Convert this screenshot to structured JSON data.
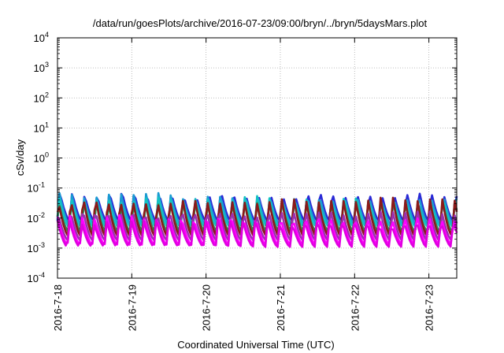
{
  "chart_data": {
    "type": "line",
    "title": "/data/run/goesPlots/archive/2016-07-23/09:00/bryn/../bryn/5daysMars.plot",
    "xlabel": "Coordinated Universal Time (UTC)",
    "ylabel": "cSv/day",
    "yscale": "log",
    "ylim": [
      0.0001,
      10000
    ],
    "xlim": [
      "2016-07-18",
      "2016-07-23 09:00"
    ],
    "y_ticks": [
      {
        "value": 0.0001,
        "base": "10",
        "exp": "-4"
      },
      {
        "value": 0.001,
        "base": "10",
        "exp": "-3"
      },
      {
        "value": 0.01,
        "base": "10",
        "exp": "-2"
      },
      {
        "value": 0.1,
        "base": "10",
        "exp": "-1"
      },
      {
        "value": 1,
        "base": "10",
        "exp": "0"
      },
      {
        "value": 10,
        "base": "10",
        "exp": "1"
      },
      {
        "value": 100,
        "base": "10",
        "exp": "2"
      },
      {
        "value": 1000,
        "base": "10",
        "exp": "3"
      },
      {
        "value": 10000,
        "base": "10",
        "exp": "4"
      }
    ],
    "x_ticks": [
      "2016-7-18",
      "2016-7-19",
      "2016-7-20",
      "2016-7-21",
      "2016-7-22",
      "2016-7-23"
    ],
    "grid": true,
    "oscillation": {
      "cycles_per_day": 6,
      "days_span": 5.375
    },
    "series": [
      {
        "color": "#2a2ad6",
        "peak": 0.075,
        "trough": 0.008
      },
      {
        "color": "#1a9bd2",
        "peak": 0.06,
        "trough": 0.006
      },
      {
        "color": "#13c2c2",
        "peak": 0.045,
        "trough": 0.005
      },
      {
        "color": "#2e8b57",
        "peak": 0.035,
        "trough": 0.0035
      },
      {
        "color": "#8b1a1a",
        "peak": 0.05,
        "trough": 0.0025
      },
      {
        "color": "#9b30b0",
        "peak": 0.02,
        "trough": 0.0018
      },
      {
        "color": "#ff00ff",
        "peak": 0.012,
        "trough": 0.0013
      },
      {
        "color": "#e000e0",
        "peak": 0.008,
        "trough": 0.0011
      }
    ]
  }
}
